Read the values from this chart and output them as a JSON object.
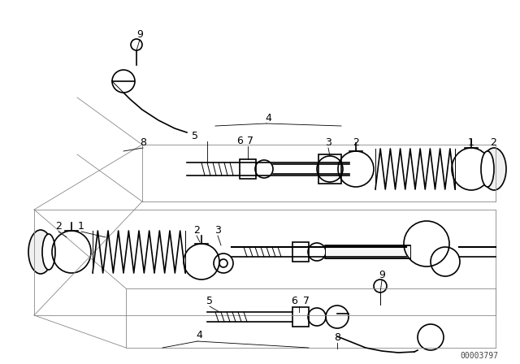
{
  "background_color": "#ffffff",
  "line_color": "#000000",
  "text_color": "#000000",
  "part_number_text": "00003797",
  "diagram_line_color": "#888888"
}
